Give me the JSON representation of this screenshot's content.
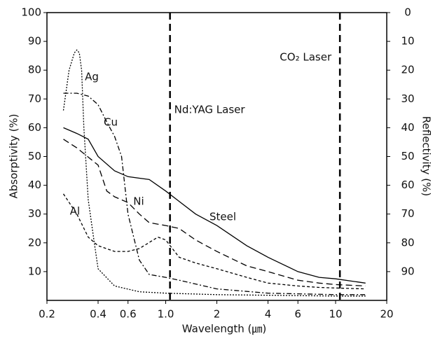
{
  "chart_data": {
    "type": "line",
    "xlabel": "Wavelength (㎛)",
    "ylabel": "Absorptivity (%)",
    "y2label": "Reflectivity (%)",
    "xscale": "log",
    "xlim": [
      0.2,
      20
    ],
    "xticks": [
      0.2,
      0.4,
      0.6,
      {
        "value": 1,
        "label": "1.0"
      },
      2,
      4,
      6,
      10,
      20
    ],
    "ylim": [
      0,
      100
    ],
    "yticks": [
      10,
      20,
      30,
      40,
      50,
      60,
      70,
      80,
      90,
      100
    ],
    "y2lim": [
      100,
      0
    ],
    "y2ticks": [
      0,
      10,
      20,
      30,
      40,
      50,
      60,
      70,
      80,
      90
    ],
    "vlines": [
      {
        "x": 1.06,
        "label": "Nd:YAG Laser"
      },
      {
        "x": 10.6,
        "label": "CO₂ Laser"
      }
    ],
    "series": [
      {
        "name": "Steel",
        "color": "#000000",
        "dash": "none",
        "x": [
          0.25,
          0.3,
          0.35,
          0.4,
          0.5,
          0.6,
          0.8,
          1.0,
          1.5,
          2,
          3,
          4,
          6,
          8,
          10,
          15
        ],
        "values": [
          60,
          58,
          56,
          50,
          45,
          43,
          42,
          38,
          30,
          26,
          19,
          15,
          10,
          8,
          7.5,
          6
        ]
      },
      {
        "name": "Ni",
        "color": "#000000",
        "dash": "9,5",
        "x": [
          0.25,
          0.3,
          0.4,
          0.45,
          0.5,
          0.6,
          0.7,
          0.8,
          1.0,
          1.2,
          1.5,
          2,
          3,
          4,
          6,
          8,
          10,
          15
        ],
        "values": [
          56,
          53,
          47,
          38,
          36,
          34,
          30,
          27,
          26,
          25,
          21,
          17,
          12,
          10,
          7,
          6,
          5.5,
          5
        ]
      },
      {
        "name": "Al",
        "color": "#000000",
        "dash": "4,3",
        "x": [
          0.25,
          0.3,
          0.35,
          0.4,
          0.5,
          0.6,
          0.7,
          0.9,
          1.0,
          1.2,
          1.5,
          2,
          3,
          4,
          6,
          8,
          10,
          15
        ],
        "values": [
          37,
          30,
          22,
          19,
          17,
          17,
          18,
          22,
          21,
          15,
          13,
          11,
          8,
          6,
          5,
          4.5,
          4.3,
          4
        ]
      },
      {
        "name": "Ag",
        "color": "#000000",
        "dash": "2,2",
        "x": [
          0.25,
          0.27,
          0.29,
          0.3,
          0.31,
          0.32,
          0.33,
          0.35,
          0.38,
          0.4,
          0.5,
          0.7,
          1.0,
          2,
          10,
          15
        ],
        "values": [
          66,
          80,
          86,
          87,
          86,
          80,
          60,
          35,
          20,
          11,
          5,
          3,
          2.5,
          2,
          1.5,
          1.5
        ]
      },
      {
        "name": "Cu",
        "color": "#000000",
        "dash": "7,3,2,3",
        "x": [
          0.25,
          0.3,
          0.35,
          0.4,
          0.45,
          0.5,
          0.55,
          0.6,
          0.7,
          0.8,
          1.0,
          1.2,
          2,
          4,
          10,
          15
        ],
        "values": [
          72,
          72,
          71,
          68,
          62,
          57,
          50,
          30,
          14,
          9,
          8,
          7,
          4,
          2.5,
          2,
          2
        ]
      }
    ]
  }
}
